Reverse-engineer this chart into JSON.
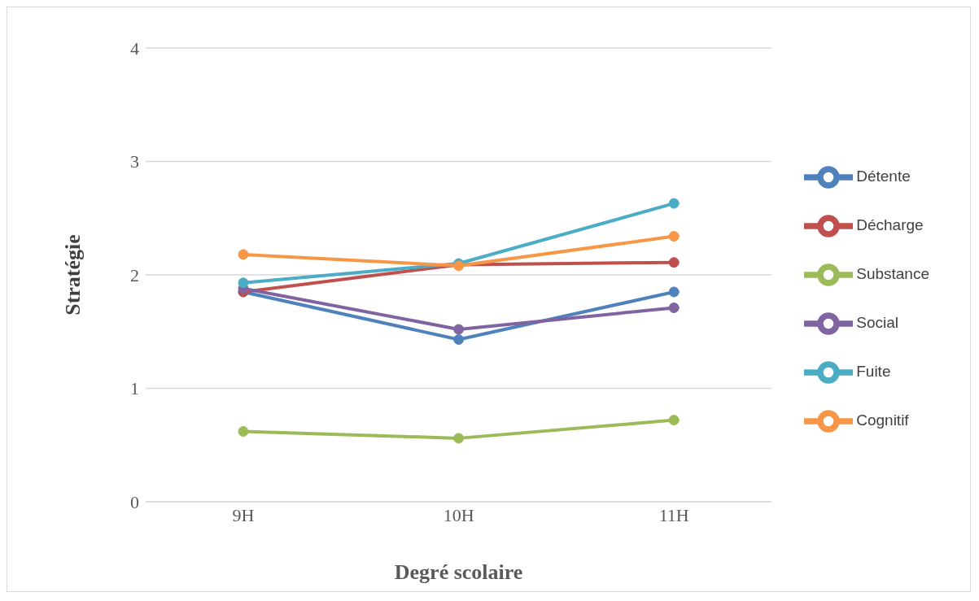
{
  "chart_data": {
    "type": "line",
    "xlabel": "Degré scolaire",
    "ylabel": "Stratégie",
    "categories": [
      "9H",
      "10H",
      "11H"
    ],
    "series": [
      {
        "name": "Détente",
        "color": "#4f81bd",
        "values": [
          1.85,
          1.43,
          1.85
        ]
      },
      {
        "name": "Décharge",
        "color": "#c0504d",
        "values": [
          1.85,
          2.09,
          2.11
        ]
      },
      {
        "name": "Substance",
        "color": "#9bbb59",
        "values": [
          0.62,
          0.56,
          0.72
        ]
      },
      {
        "name": "Social",
        "color": "#8064a2",
        "values": [
          1.88,
          1.52,
          1.71
        ]
      },
      {
        "name": "Fuite",
        "color": "#4bacc6",
        "values": [
          1.93,
          2.1,
          2.63
        ]
      },
      {
        "name": "Cognitif",
        "color": "#f79646",
        "values": [
          2.18,
          2.08,
          2.34
        ]
      }
    ],
    "ylim": [
      0,
      4
    ],
    "yticks": [
      0,
      1,
      2,
      3,
      4
    ],
    "grid": "y",
    "legend": "right",
    "marker": "circle",
    "line_style": "solid"
  }
}
